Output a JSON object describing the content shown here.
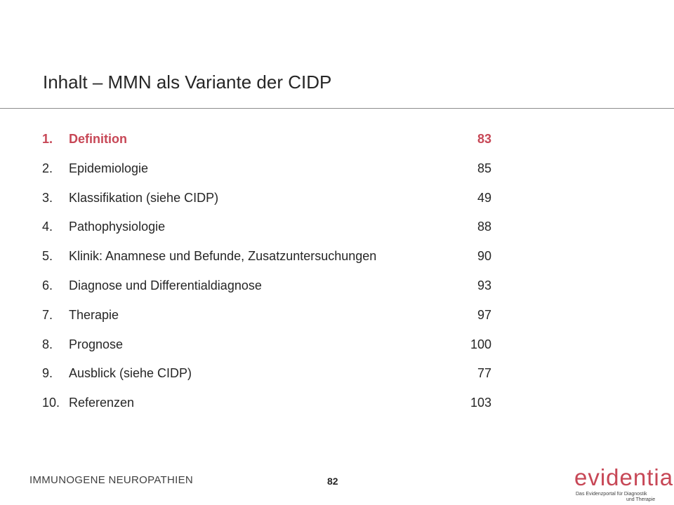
{
  "title": "Inhalt – MMN als Variante der CIDP",
  "toc": [
    {
      "num": "1.",
      "label": "Definition",
      "page": "83",
      "active": true
    },
    {
      "num": "2.",
      "label": "Epidemiologie",
      "page": "85"
    },
    {
      "num": "3.",
      "label": "Klassifikation (siehe CIDP)",
      "page": "49"
    },
    {
      "num": "4.",
      "label": "Pathophysiologie",
      "page": "88"
    },
    {
      "num": "5.",
      "label": "Klinik: Anamnese und Befunde, Zusatzuntersuchungen",
      "page": "90"
    },
    {
      "num": "6.",
      "label": "Diagnose und Differentialdiagnose",
      "page": "93"
    },
    {
      "num": "7.",
      "label": "Therapie",
      "page": "97"
    },
    {
      "num": "8.",
      "label": "Prognose",
      "page": "100"
    },
    {
      "num": "9.",
      "label": "Ausblick (siehe CIDP)",
      "page": "77"
    },
    {
      "num": "10.",
      "label": "Referenzen",
      "page": "103"
    }
  ],
  "footer": {
    "section": "IMMUNOGENE NEUROPATHIEN",
    "page_number": "82"
  },
  "logo": {
    "word": "evidentia",
    "tagline_line1": "Das Evidenzportal für Diagnostik",
    "tagline_line2": "und Therapie"
  },
  "colors": {
    "accent": "#c74756",
    "text": "#262626"
  }
}
